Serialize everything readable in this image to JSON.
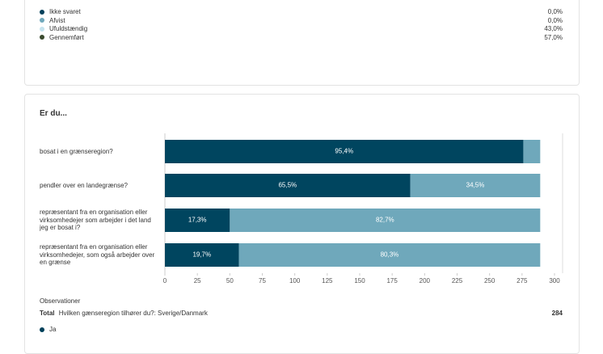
{
  "status_list": [
    {
      "label": "Ikke svaret",
      "value": "0,0%",
      "color": "#00405a"
    },
    {
      "label": "Afvist",
      "value": "0,0%",
      "color": "#6fa8bb"
    },
    {
      "label": "Ufuldstændig",
      "value": "43,0%",
      "color": "#c5e3ee"
    },
    {
      "label": "Gennemført",
      "value": "57,0%",
      "color": "#3a4a2e"
    }
  ],
  "chart_data": {
    "type": "stacked-barh",
    "title": "Er du...",
    "categories": [
      "bosat i en grænseregion?",
      "pendler over en landegrænse?",
      "repræsentant fra en organisation eller virksomhedejer som arbejder i det land jeg er bosat i?",
      "repræsentant fra en organisation eller virksomhedejer, som også arbejder over en grænse"
    ],
    "series": [
      {
        "color": "#00455f",
        "values": [
          276,
          189,
          50,
          57
        ],
        "value_labels": [
          "95,4%",
          "65,5%",
          "17,3%",
          "19,7%"
        ]
      },
      {
        "color": "#6fa8bb",
        "values": [
          13,
          100,
          239,
          232
        ],
        "value_labels": [
          null,
          "34,5%",
          "82,7%",
          "80,3%"
        ]
      }
    ],
    "xlim": [
      0,
      300
    ],
    "xticks": [
      0,
      25,
      50,
      75,
      100,
      125,
      150,
      175,
      200,
      225,
      250,
      275,
      300
    ]
  },
  "footer": {
    "heading": "Observationer",
    "total_label": "Total",
    "question": "Hvilken gænseregion tilhører du?: Sverige/Danmark",
    "count": "284",
    "legend": {
      "label": "Ja",
      "color": "#00405a"
    }
  }
}
